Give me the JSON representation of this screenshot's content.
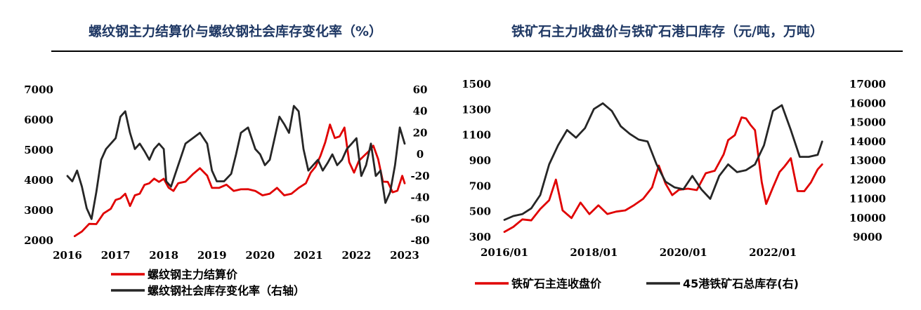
{
  "chart_data": [
    {
      "type": "line",
      "title": "螺纹钢主力结算价与螺纹钢社会库存变化率（%）",
      "x_ticks": [
        "2016",
        "2017",
        "2018",
        "2019",
        "2020",
        "2021",
        "2022",
        "2023"
      ],
      "xlim": [
        2016.0,
        2023.0
      ],
      "y_left": {
        "ticks": [
          2000,
          3000,
          4000,
          5000,
          6000,
          7000
        ],
        "ylim": [
          2000,
          7000
        ]
      },
      "y_right": {
        "ticks": [
          -80,
          -60,
          -40,
          -20,
          0,
          20,
          40,
          60
        ],
        "ylim": [
          -80,
          60
        ]
      },
      "series": [
        {
          "name": "螺纹钢主力结算价",
          "axis": "left",
          "color": "#e00000",
          "x": [
            2016.15,
            2016.3,
            2016.45,
            2016.6,
            2016.75,
            2016.9,
            2017.0,
            2017.1,
            2017.2,
            2017.3,
            2017.4,
            2017.5,
            2017.6,
            2017.7,
            2017.8,
            2017.9,
            2018.0,
            2018.1,
            2018.2,
            2018.3,
            2018.45,
            2018.6,
            2018.75,
            2018.9,
            2019.0,
            2019.15,
            2019.3,
            2019.45,
            2019.6,
            2019.75,
            2019.9,
            2020.05,
            2020.2,
            2020.35,
            2020.5,
            2020.65,
            2020.8,
            2020.95,
            2021.05,
            2021.15,
            2021.25,
            2021.35,
            2021.45,
            2021.55,
            2021.65,
            2021.75,
            2021.85,
            2021.95,
            2022.05,
            2022.15,
            2022.25,
            2022.35,
            2022.45,
            2022.55,
            2022.65,
            2022.75,
            2022.85,
            2022.95,
            2023.0
          ],
          "values": [
            2100,
            2300,
            2600,
            2500,
            2900,
            3100,
            3300,
            3400,
            3600,
            3100,
            3500,
            3600,
            3800,
            3900,
            4100,
            3900,
            4050,
            3800,
            3600,
            3900,
            4000,
            4150,
            4400,
            4200,
            3700,
            3750,
            3900,
            3600,
            3700,
            3750,
            3600,
            3500,
            3600,
            3700,
            3500,
            3600,
            3700,
            3900,
            4300,
            4400,
            4800,
            5300,
            5800,
            5400,
            5500,
            5700,
            4600,
            4300,
            4600,
            4800,
            5000,
            5100,
            4700,
            4000,
            3900,
            3600,
            3700,
            4100,
            3900
          ]
        },
        {
          "name": "螺纹钢社会库存变化率（右轴）",
          "axis": "right",
          "color": "#262626",
          "x": [
            2016.0,
            2016.1,
            2016.2,
            2016.3,
            2016.4,
            2016.5,
            2016.6,
            2016.7,
            2016.8,
            2016.9,
            2017.0,
            2017.1,
            2017.2,
            2017.3,
            2017.4,
            2017.5,
            2017.6,
            2017.7,
            2017.8,
            2017.9,
            2018.0,
            2018.05,
            2018.15,
            2018.3,
            2018.45,
            2018.6,
            2018.75,
            2018.9,
            2019.0,
            2019.1,
            2019.25,
            2019.4,
            2019.5,
            2019.6,
            2019.75,
            2019.9,
            2020.0,
            2020.1,
            2020.2,
            2020.3,
            2020.4,
            2020.5,
            2020.6,
            2020.7,
            2020.8,
            2020.9,
            2021.0,
            2021.1,
            2021.2,
            2021.3,
            2021.4,
            2021.5,
            2021.6,
            2021.7,
            2021.8,
            2021.9,
            2022.0,
            2022.1,
            2022.2,
            2022.3,
            2022.4,
            2022.5,
            2022.6,
            2022.7,
            2022.8,
            2022.9,
            2023.0
          ],
          "values": [
            -20,
            -25,
            -15,
            -30,
            -50,
            -60,
            -35,
            -5,
            5,
            10,
            15,
            35,
            40,
            20,
            5,
            10,
            3,
            -5,
            5,
            10,
            5,
            -25,
            -30,
            -10,
            10,
            15,
            20,
            10,
            -15,
            -25,
            -25,
            -18,
            0,
            20,
            25,
            5,
            0,
            -10,
            -5,
            15,
            35,
            28,
            20,
            45,
            40,
            5,
            -15,
            -10,
            -5,
            -15,
            -8,
            0,
            -10,
            -5,
            5,
            10,
            15,
            -20,
            -10,
            10,
            -20,
            -15,
            -45,
            -35,
            -10,
            25,
            10
          ]
        }
      ],
      "legend": [
        "螺纹钢主力结算价",
        "螺纹钢社会库存变化率（右轴）"
      ],
      "legend_placement": "bottom"
    },
    {
      "type": "line",
      "title": "铁矿石主力收盘价与铁矿石港口库存（元/吨，万吨）",
      "x_ticks": [
        "2016/01",
        "2018/01",
        "2020/01",
        "2022/01"
      ],
      "xlim": [
        2016.0,
        2023.3
      ],
      "y_left": {
        "ticks": [
          300,
          500,
          700,
          900,
          1100,
          1300,
          1500
        ],
        "ylim": [
          300,
          1500
        ]
      },
      "y_right": {
        "ticks": [
          9000,
          10000,
          11000,
          12000,
          13000,
          14000,
          15000,
          16000,
          17000
        ],
        "ylim": [
          9000,
          17000
        ]
      },
      "series": [
        {
          "name": "铁矿石主连收盘价",
          "axis": "left",
          "color": "#e00000",
          "x": [
            2016.0,
            2016.2,
            2016.4,
            2016.6,
            2016.8,
            2017.0,
            2017.15,
            2017.3,
            2017.5,
            2017.7,
            2017.9,
            2018.1,
            2018.3,
            2018.5,
            2018.7,
            2018.9,
            2019.1,
            2019.3,
            2019.45,
            2019.6,
            2019.75,
            2019.9,
            2020.1,
            2020.3,
            2020.5,
            2020.7,
            2020.9,
            2021.0,
            2021.15,
            2021.3,
            2021.4,
            2021.5,
            2021.6,
            2021.75,
            2021.85,
            2022.0,
            2022.15,
            2022.25,
            2022.4,
            2022.55,
            2022.7,
            2022.85,
            2023.0,
            2023.1
          ],
          "values": [
            330,
            380,
            450,
            420,
            520,
            600,
            740,
            510,
            460,
            560,
            480,
            560,
            470,
            500,
            520,
            540,
            600,
            700,
            850,
            720,
            640,
            660,
            680,
            680,
            790,
            820,
            960,
            1050,
            1100,
            1250,
            1220,
            1180,
            1150,
            720,
            560,
            700,
            800,
            850,
            930,
            650,
            660,
            740,
            820,
            870
          ]
        },
        {
          "name": "45港铁矿石总库存(右)",
          "axis": "right",
          "color": "#262626",
          "x": [
            2016.0,
            2016.2,
            2016.4,
            2016.6,
            2016.8,
            2017.0,
            2017.2,
            2017.4,
            2017.6,
            2017.8,
            2018.0,
            2018.2,
            2018.4,
            2018.6,
            2018.8,
            2019.0,
            2019.2,
            2019.4,
            2019.6,
            2019.8,
            2020.0,
            2020.2,
            2020.4,
            2020.6,
            2020.8,
            2021.0,
            2021.2,
            2021.4,
            2021.6,
            2021.8,
            2021.9,
            2022.0,
            2022.2,
            2022.4,
            2022.6,
            2022.8,
            2023.0,
            2023.1
          ],
          "values": [
            9900,
            10100,
            10200,
            10500,
            11200,
            12800,
            13800,
            14600,
            14200,
            14700,
            15700,
            16000,
            15600,
            14800,
            14400,
            14100,
            14000,
            12800,
            11900,
            11600,
            11500,
            12200,
            11500,
            11000,
            12200,
            12800,
            12400,
            12500,
            12800,
            13800,
            14700,
            15600,
            15900,
            14600,
            13200,
            13200,
            13300,
            14000
          ]
        }
      ],
      "legend": [
        "铁矿石主连收盘价",
        "45港铁矿石总库存(右)"
      ],
      "legend_placement": "bottom"
    }
  ]
}
